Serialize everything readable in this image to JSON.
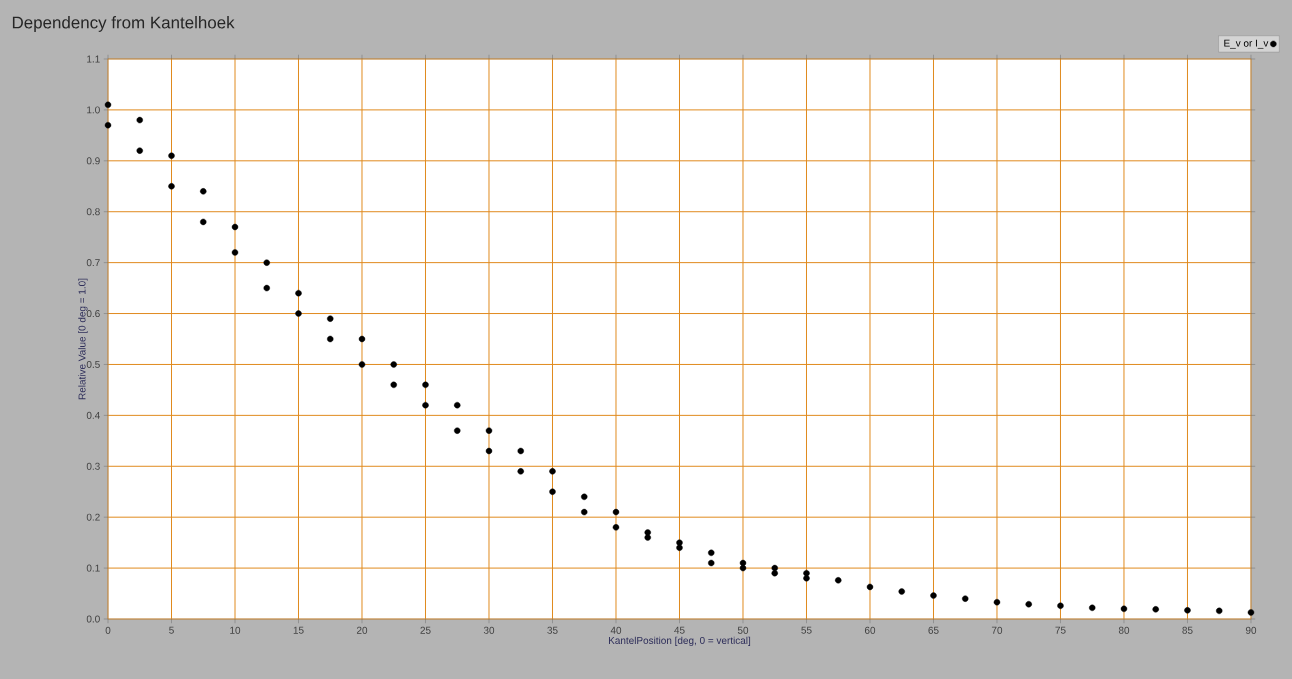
{
  "chart_data": {
    "type": "scatter",
    "title": "Dependency from Kantelhoek",
    "xlabel": "KantelPosition [deg, 0 = vertical]",
    "ylabel": "Relative Value [0 deg = 1.0]",
    "x": [
      0,
      0,
      2.5,
      2.5,
      5,
      5,
      7.5,
      7.5,
      10,
      10,
      12.5,
      12.5,
      15,
      15,
      17.5,
      17.5,
      20,
      20,
      22.5,
      22.5,
      25,
      25,
      27.5,
      27.5,
      30,
      30,
      32.5,
      32.5,
      35,
      35,
      37.5,
      37.5,
      40,
      40,
      42.5,
      42.5,
      45,
      45,
      47.5,
      47.5,
      50,
      50,
      52.5,
      52.5,
      55,
      55,
      57.5,
      60,
      62.5,
      65,
      67.5,
      70,
      72.5,
      75,
      77.5,
      80,
      82.5,
      85,
      87.5,
      90
    ],
    "series": [
      {
        "name": "E_v or I_v",
        "color": "#000000",
        "values": [
          1.01,
          0.97,
          0.98,
          0.92,
          0.91,
          0.85,
          0.84,
          0.78,
          0.77,
          0.72,
          0.7,
          0.65,
          0.64,
          0.6,
          0.59,
          0.55,
          0.55,
          0.5,
          0.5,
          0.46,
          0.46,
          0.42,
          0.42,
          0.37,
          0.37,
          0.33,
          0.33,
          0.29,
          0.29,
          0.25,
          0.24,
          0.21,
          0.21,
          0.18,
          0.17,
          0.16,
          0.15,
          0.14,
          0.13,
          0.11,
          0.11,
          0.1,
          0.1,
          0.09,
          0.09,
          0.08,
          0.076,
          0.063,
          0.054,
          0.046,
          0.04,
          0.033,
          0.029,
          0.026,
          0.022,
          0.02,
          0.019,
          0.017,
          0.016,
          0.013
        ]
      }
    ],
    "xlim": [
      0,
      90
    ],
    "ylim": [
      0,
      1.1
    ],
    "xticks": [
      0,
      5,
      10,
      15,
      20,
      25,
      30,
      35,
      40,
      45,
      50,
      55,
      60,
      65,
      70,
      75,
      80,
      85,
      90
    ],
    "yticks": [
      {
        "value": 0,
        "label": "0.0"
      },
      0.1,
      0.2,
      0.3,
      0.4,
      0.5,
      0.6,
      0.7,
      0.8,
      0.9,
      {
        "value": 1,
        "label": "1.0"
      },
      1.1
    ],
    "grid": true,
    "legend": "top right",
    "marker": "circle"
  }
}
